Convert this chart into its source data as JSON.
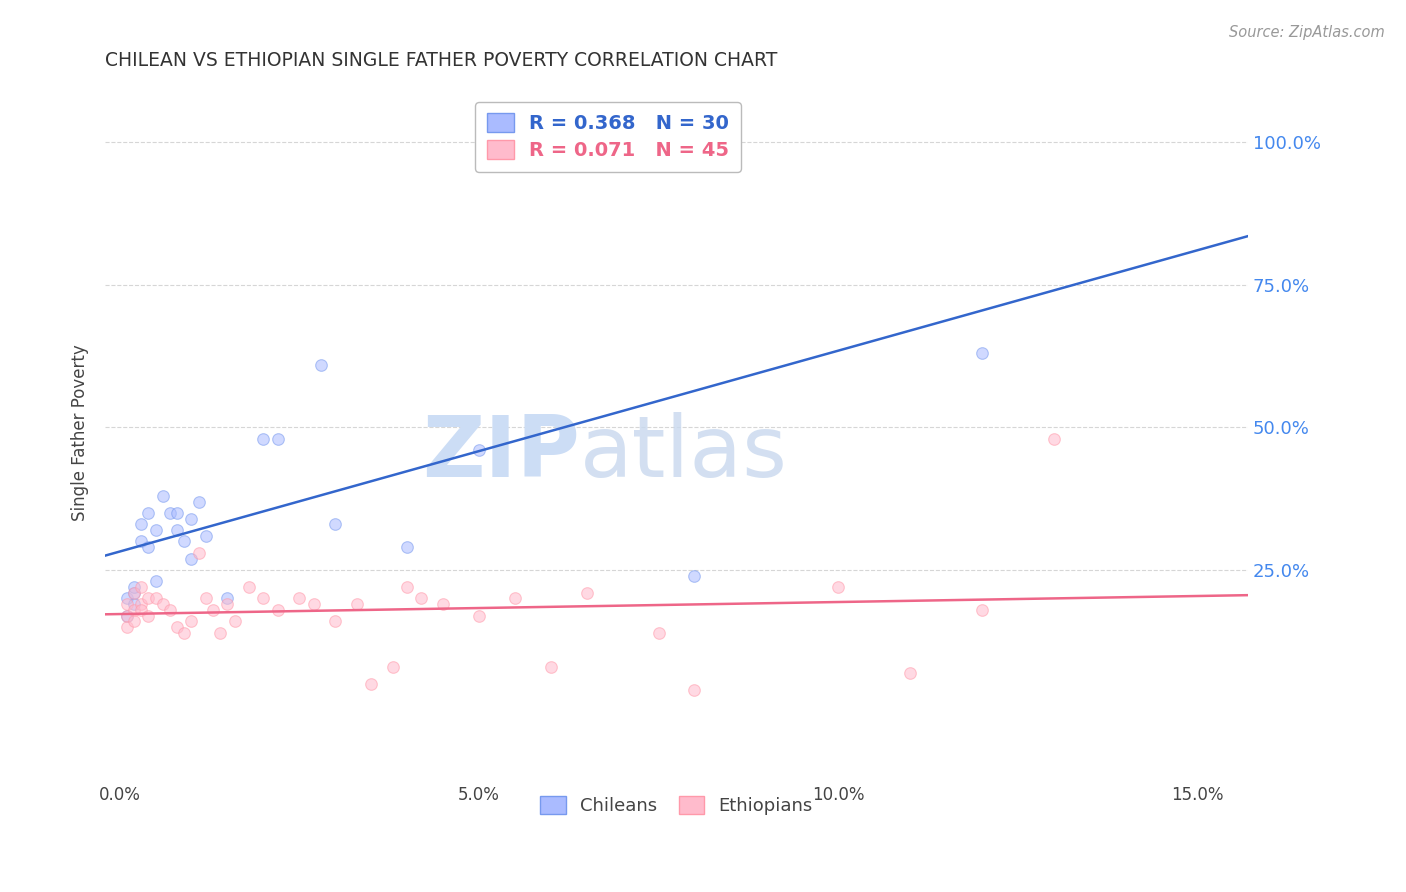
{
  "title": "CHILEAN VS ETHIOPIAN SINGLE FATHER POVERTY CORRELATION CHART",
  "source": "Source: ZipAtlas.com",
  "ylabel": "Single Father Poverty",
  "xlabel_ticks": [
    "0.0%",
    "5.0%",
    "10.0%",
    "15.0%"
  ],
  "xlabel_vals": [
    0.0,
    0.05,
    0.1,
    0.15
  ],
  "ylabel_ticks": [
    "25.0%",
    "50.0%",
    "75.0%",
    "100.0%"
  ],
  "ylabel_vals": [
    0.25,
    0.5,
    0.75,
    1.0
  ],
  "ylim": [
    -0.12,
    1.1
  ],
  "xlim": [
    -0.002,
    0.157
  ],
  "legend1_label": "R = 0.368   N = 30",
  "legend2_label": "R = 0.071   N = 45",
  "chilean_x": [
    0.001,
    0.001,
    0.002,
    0.002,
    0.002,
    0.003,
    0.003,
    0.004,
    0.004,
    0.005,
    0.005,
    0.006,
    0.007,
    0.008,
    0.008,
    0.009,
    0.01,
    0.01,
    0.011,
    0.012,
    0.015,
    0.02,
    0.022,
    0.028,
    0.03,
    0.04,
    0.05,
    0.065,
    0.08,
    0.12
  ],
  "chilean_y": [
    0.2,
    0.17,
    0.21,
    0.19,
    0.22,
    0.3,
    0.33,
    0.35,
    0.29,
    0.32,
    0.23,
    0.38,
    0.35,
    0.35,
    0.32,
    0.3,
    0.34,
    0.27,
    0.37,
    0.31,
    0.2,
    0.48,
    0.48,
    0.61,
    0.33,
    0.29,
    0.46,
    1.0,
    0.24,
    0.63
  ],
  "ethiopian_x": [
    0.001,
    0.001,
    0.001,
    0.002,
    0.002,
    0.002,
    0.003,
    0.003,
    0.003,
    0.004,
    0.004,
    0.005,
    0.006,
    0.007,
    0.008,
    0.009,
    0.01,
    0.011,
    0.012,
    0.013,
    0.014,
    0.015,
    0.016,
    0.018,
    0.02,
    0.022,
    0.025,
    0.027,
    0.03,
    0.033,
    0.035,
    0.038,
    0.04,
    0.042,
    0.045,
    0.05,
    0.055,
    0.06,
    0.065,
    0.075,
    0.08,
    0.1,
    0.11,
    0.12,
    0.13
  ],
  "ethiopian_y": [
    0.19,
    0.17,
    0.15,
    0.21,
    0.18,
    0.16,
    0.22,
    0.19,
    0.18,
    0.2,
    0.17,
    0.2,
    0.19,
    0.18,
    0.15,
    0.14,
    0.16,
    0.28,
    0.2,
    0.18,
    0.14,
    0.19,
    0.16,
    0.22,
    0.2,
    0.18,
    0.2,
    0.19,
    0.16,
    0.19,
    0.05,
    0.08,
    0.22,
    0.2,
    0.19,
    0.17,
    0.2,
    0.08,
    0.21,
    0.14,
    0.04,
    0.22,
    0.07,
    0.18,
    0.48
  ],
  "watermark_top": "ZIP",
  "watermark_bottom": "atlas",
  "watermark_color": "#ccddf5",
  "bg_color": "#ffffff",
  "grid_color": "#cccccc",
  "title_color": "#333333",
  "axis_label_color": "#555555",
  "right_tick_color": "#4488ee",
  "chilean_dot_color": "#aabbff",
  "chilean_dot_edge": "#7799ee",
  "ethiopian_dot_color": "#ffbbcc",
  "ethiopian_dot_edge": "#ff99aa",
  "blue_line_color": "#3366cc",
  "pink_line_color": "#ee6688",
  "dot_size": 70,
  "dot_alpha": 0.55,
  "line_width": 1.8
}
